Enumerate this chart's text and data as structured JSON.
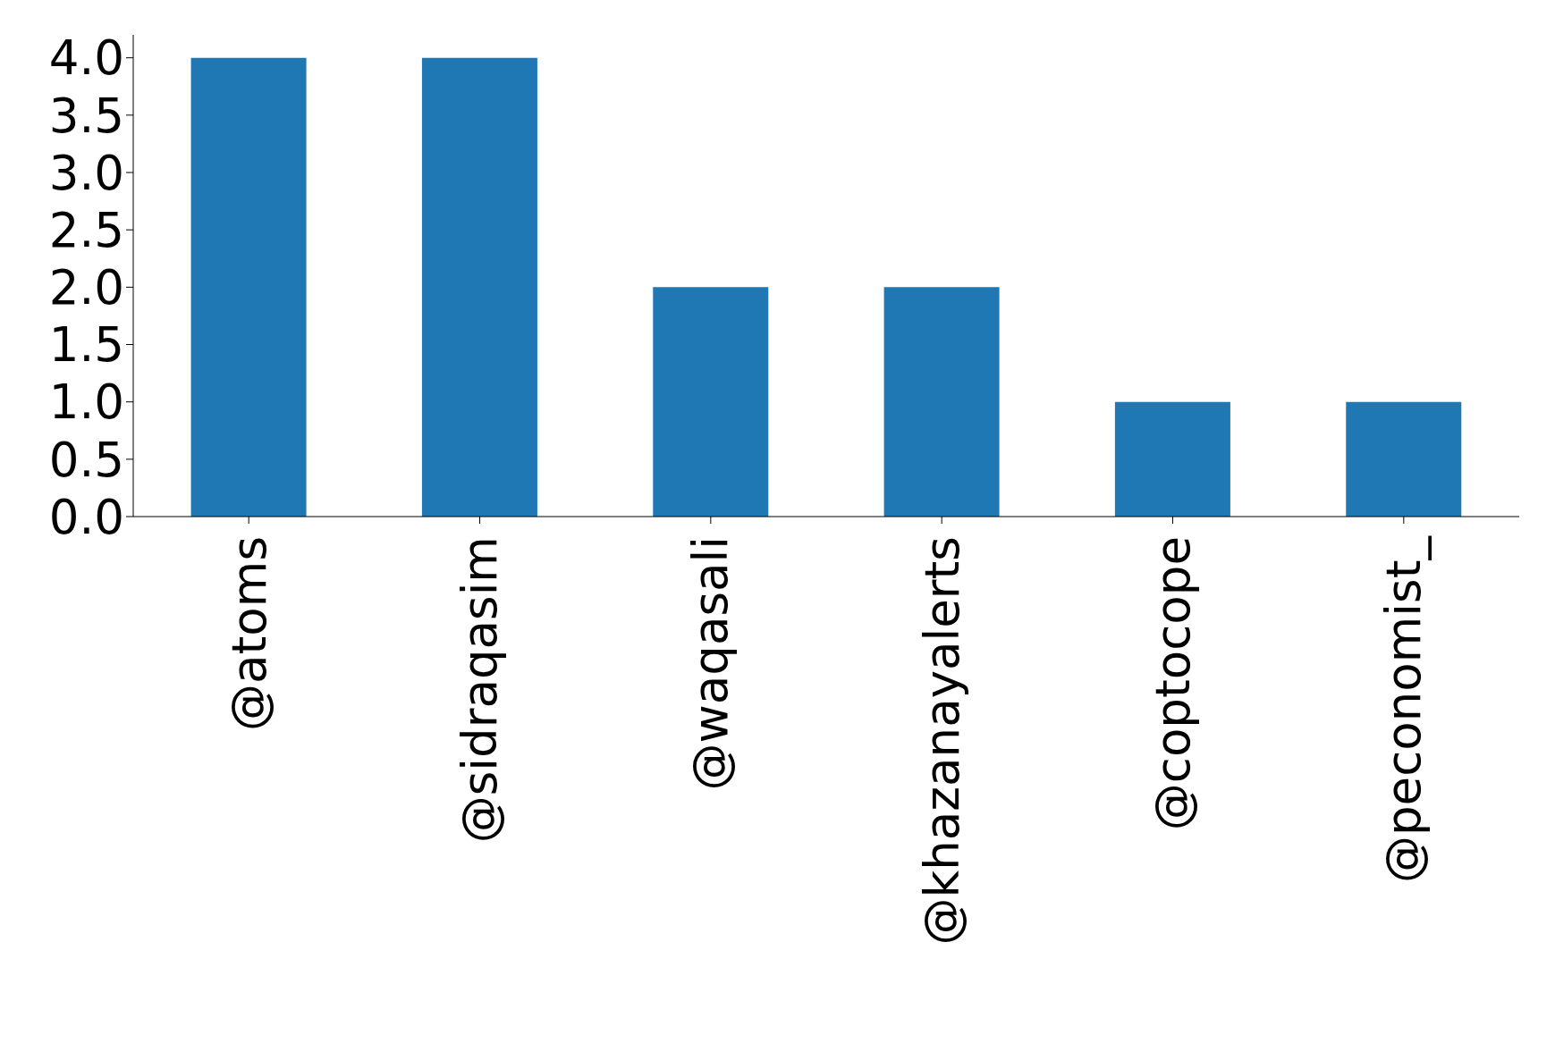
{
  "chart_data": {
    "type": "bar",
    "categories": [
      "@atoms",
      "@sidraqasim",
      "@waqasali",
      "@khazanayalerts",
      "@coptocope",
      "@peconomist_"
    ],
    "values": [
      4,
      4,
      2,
      2,
      1,
      1
    ],
    "color": "#1f77b4",
    "ylim": [
      0,
      4.2
    ],
    "yticks": [
      {
        "value": 0,
        "label": "0.0"
      },
      {
        "value": 0.5,
        "label": "0.5"
      },
      {
        "value": 1,
        "label": "1.0"
      },
      {
        "value": 1.5,
        "label": "1.5"
      },
      {
        "value": 2,
        "label": "2.0"
      },
      {
        "value": 2.5,
        "label": "2.5"
      },
      {
        "value": 3,
        "label": "3.0"
      },
      {
        "value": 3.5,
        "label": "3.5"
      },
      {
        "value": 4,
        "label": "4.0"
      }
    ],
    "grid": false
  }
}
